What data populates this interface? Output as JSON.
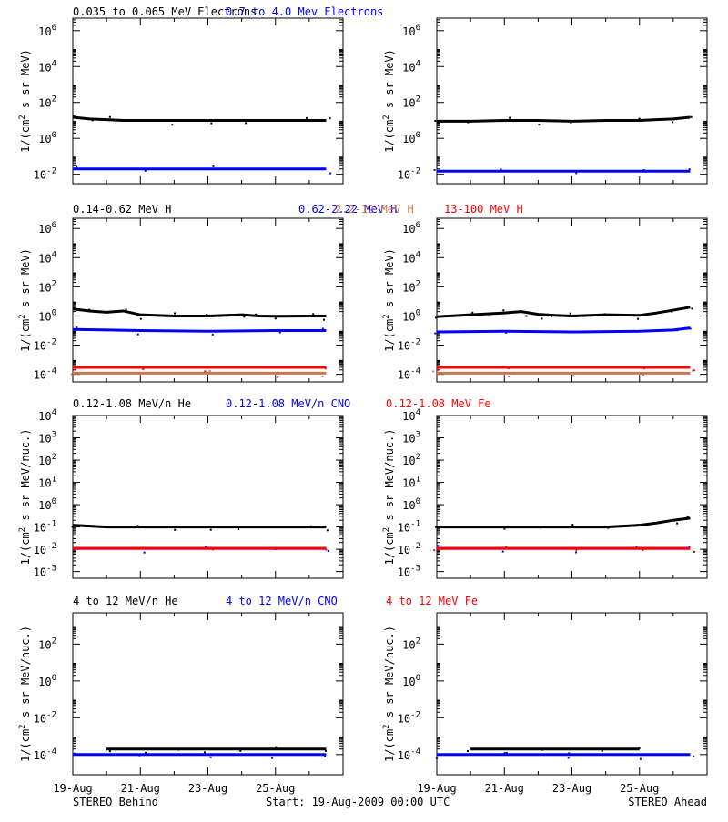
{
  "chart_data": [
    {
      "type": "scatter",
      "title_parts": [
        "0.035 to 0.065 MeV Electrons",
        "0.7 to 4.0 Mev Electrons"
      ],
      "title_colors": [
        "#000000",
        "#0000ff"
      ],
      "ylabel": "1/(cm2 s sr MeV)",
      "y_scale": "log",
      "ylim": [
        0.003,
        5000000
      ],
      "yticks": [
        0.01,
        1,
        100,
        10000,
        1000000
      ],
      "ytick_labels": [
        [
          "10",
          "-2"
        ],
        [
          "10",
          "0"
        ],
        [
          "10",
          "2"
        ],
        [
          "10",
          "4"
        ],
        [
          "10",
          "6"
        ]
      ],
      "xlim": [
        "19-Aug-2009",
        "27-Aug-2009"
      ],
      "xtick_labels": [
        "19-Aug",
        "21-Aug",
        "23-Aug",
        "25-Aug"
      ],
      "panels": [
        {
          "name": "STEREO Behind",
          "series": [
            {
              "name": "0.035 to 0.065 MeV Electrons",
              "color": "#000000",
              "x_days": [
                0,
                0.5,
                1,
                1.5,
                2,
                3,
                4,
                5,
                6,
                7,
                7.5
              ],
              "y": [
                15,
                12,
                11,
                10,
                10,
                10,
                10,
                10,
                10,
                10,
                10
              ]
            },
            {
              "name": "0.7 to 4.0 Mev Electrons",
              "color": "#0000ff",
              "x_days": [
                0,
                2,
                4,
                6,
                7.5
              ],
              "y": [
                0.02,
                0.02,
                0.02,
                0.02,
                0.02
              ]
            }
          ]
        },
        {
          "name": "STEREO Ahead",
          "series": [
            {
              "name": "0.035 to 0.065 MeV Electrons",
              "color": "#000000",
              "x_days": [
                0,
                1,
                2,
                3,
                4,
                5,
                6,
                6.5,
                7,
                7.5
              ],
              "y": [
                9,
                9,
                10,
                10,
                9,
                10,
                10,
                11,
                12,
                15
              ]
            },
            {
              "name": "0.7 to 4.0 Mev Electrons",
              "color": "#0000ff",
              "x_days": [
                0,
                2,
                4,
                6,
                7.5
              ],
              "y": [
                0.015,
                0.015,
                0.015,
                0.015,
                0.015
              ]
            }
          ]
        }
      ]
    },
    {
      "type": "scatter",
      "title_parts": [
        "0.14-0.62 MeV H",
        "0.62-2.22 MeV H",
        "2.2-12 MeV H",
        "13-100 MeV H"
      ],
      "title_colors": [
        "#000000",
        "#0000ff",
        "#c87850",
        "#ff0000"
      ],
      "ylabel": "1/(cm2 s sr MeV)",
      "y_scale": "log",
      "ylim": [
        3e-05,
        5000000
      ],
      "yticks": [
        0.0001,
        0.01,
        1,
        100,
        10000,
        1000000
      ],
      "ytick_labels": [
        [
          "10",
          "-4"
        ],
        [
          "10",
          "-2"
        ],
        [
          "10",
          "0"
        ],
        [
          "10",
          "2"
        ],
        [
          "10",
          "4"
        ],
        [
          "10",
          "6"
        ]
      ],
      "xlim": [
        "19-Aug-2009",
        "27-Aug-2009"
      ],
      "xtick_labels": [
        "19-Aug",
        "21-Aug",
        "23-Aug",
        "25-Aug"
      ],
      "panels": [
        {
          "name": "STEREO Behind",
          "series": [
            {
              "name": "0.14-0.62 MeV H",
              "color": "#000000",
              "x_days": [
                0,
                0.5,
                1,
                1.5,
                2,
                3,
                4,
                5,
                5.5,
                6,
                7,
                7.5
              ],
              "y": [
                3,
                2.2,
                1.8,
                2.2,
                1.2,
                1.0,
                1.0,
                1.2,
                1.0,
                0.95,
                1.0,
                1.0
              ]
            },
            {
              "name": "0.62-2.22 MeV H",
              "color": "#0000ff",
              "x_days": [
                0,
                2,
                4,
                6,
                7.5
              ],
              "y": [
                0.12,
                0.1,
                0.09,
                0.1,
                0.1
              ]
            },
            {
              "name": "2.2-12 MeV H",
              "color": "#c87850",
              "x_days": [
                0,
                2,
                4,
                6,
                7.5
              ],
              "y": [
                0.00012,
                0.00012,
                0.00012,
                0.00012,
                0.00012
              ]
            },
            {
              "name": "13-100 MeV H",
              "color": "#ff0000",
              "x_days": [
                0,
                2,
                4,
                6,
                7.5
              ],
              "y": [
                0.0003,
                0.0003,
                0.0003,
                0.0003,
                0.0003
              ]
            }
          ]
        },
        {
          "name": "STEREO Ahead",
          "series": [
            {
              "name": "0.14-0.62 MeV H",
              "color": "#000000",
              "x_days": [
                0,
                1,
                2,
                2.5,
                3,
                3.5,
                4,
                5,
                6,
                6.5,
                7,
                7.5
              ],
              "y": [
                0.9,
                1.2,
                1.6,
                2,
                1.3,
                1.1,
                1.0,
                1.2,
                1.1,
                1.6,
                2.5,
                4
              ]
            },
            {
              "name": "0.62-2.22 MeV H",
              "color": "#0000ff",
              "x_days": [
                0,
                2,
                4,
                6,
                7,
                7.5
              ],
              "y": [
                0.08,
                0.09,
                0.08,
                0.09,
                0.11,
                0.15
              ]
            },
            {
              "name": "2.2-12 MeV H",
              "color": "#c87850",
              "x_days": [
                0,
                2,
                4,
                6,
                7.5
              ],
              "y": [
                0.00012,
                0.00012,
                0.00012,
                0.00012,
                0.00012
              ]
            },
            {
              "name": "13-100 MeV H",
              "color": "#ff0000",
              "x_days": [
                0,
                2,
                4,
                6,
                7.5
              ],
              "y": [
                0.0003,
                0.0003,
                0.0003,
                0.0003,
                0.0003
              ]
            }
          ]
        }
      ]
    },
    {
      "type": "scatter",
      "title_parts": [
        "0.12-1.08 MeV/n He",
        "0.12-1.08 MeV/n CNO",
        "0.12-1.08 MeV Fe"
      ],
      "title_colors": [
        "#000000",
        "#0000ff",
        "#ff0000"
      ],
      "ylabel": "1/(cm2 s sr MeV/nuc.)",
      "y_scale": "log",
      "ylim": [
        0.0005,
        10000
      ],
      "yticks": [
        0.001,
        0.01,
        0.1,
        1,
        10,
        100,
        1000,
        10000
      ],
      "ytick_labels": [
        [
          "10",
          "-3"
        ],
        [
          "10",
          "-2"
        ],
        [
          "10",
          "-1"
        ],
        [
          "10",
          "0"
        ],
        [
          "10",
          "1"
        ],
        [
          "10",
          "2"
        ],
        [
          "10",
          "3"
        ],
        [
          "10",
          "4"
        ]
      ],
      "xlim": [
        "19-Aug-2009",
        "27-Aug-2009"
      ],
      "xtick_labels": [
        "19-Aug",
        "21-Aug",
        "23-Aug",
        "25-Aug"
      ],
      "panels": [
        {
          "name": "STEREO Behind",
          "series": [
            {
              "name": "0.12-1.08 MeV/n He",
              "color": "#000000",
              "x_days": [
                0,
                1,
                2,
                3,
                4,
                5,
                6,
                7,
                7.5
              ],
              "y": [
                0.12,
                0.1,
                0.1,
                0.1,
                0.1,
                0.1,
                0.1,
                0.1,
                0.1
              ]
            },
            {
              "name": "0.12-1.08 MeV/n CNO",
              "color": "#0000ff",
              "x_days": [
                0,
                2,
                4,
                6,
                7.5
              ],
              "y": [
                0.011,
                0.011,
                0.011,
                0.011,
                0.011
              ]
            },
            {
              "name": "0.12-1.08 MeV Fe",
              "color": "#ff0000",
              "x_days": [
                0,
                2,
                4,
                6,
                7.5
              ],
              "y": [
                0.011,
                0.011,
                0.011,
                0.011,
                0.011
              ]
            }
          ]
        },
        {
          "name": "STEREO Ahead",
          "series": [
            {
              "name": "0.12-1.08 MeV/n He",
              "color": "#000000",
              "x_days": [
                0,
                1,
                2,
                3,
                4,
                5,
                6,
                6.5,
                7,
                7.5
              ],
              "y": [
                0.1,
                0.1,
                0.1,
                0.1,
                0.1,
                0.1,
                0.12,
                0.15,
                0.2,
                0.25
              ]
            },
            {
              "name": "0.12-1.08 MeV/n CNO",
              "color": "#0000ff",
              "x_days": [
                0,
                2,
                4,
                6,
                7.5
              ],
              "y": [
                0.011,
                0.011,
                0.011,
                0.011,
                0.011
              ]
            },
            {
              "name": "0.12-1.08 MeV Fe",
              "color": "#ff0000",
              "x_days": [
                0,
                2,
                4,
                6,
                7.5
              ],
              "y": [
                0.011,
                0.011,
                0.011,
                0.011,
                0.011
              ]
            }
          ]
        }
      ]
    },
    {
      "type": "scatter",
      "title_parts": [
        "4 to 12 MeV/n He",
        "4 to 12 MeV/n CNO",
        "4 to 12 MeV Fe"
      ],
      "title_colors": [
        "#000000",
        "#0000ff",
        "#ff0000"
      ],
      "ylabel": "1/(cm2 s sr MeV/nuc.)",
      "y_scale": "log",
      "ylim": [
        8e-06,
        5000
      ],
      "yticks": [
        0.0001,
        0.01,
        1,
        100
      ],
      "ytick_labels": [
        [
          "10",
          "-4"
        ],
        [
          "10",
          "-2"
        ],
        [
          "10",
          "0"
        ],
        [
          "10",
          "2"
        ]
      ],
      "xlim": [
        "19-Aug-2009",
        "27-Aug-2009"
      ],
      "xtick_labels": [
        "19-Aug",
        "21-Aug",
        "23-Aug",
        "25-Aug"
      ],
      "panels": [
        {
          "name": "STEREO Behind",
          "series": [
            {
              "name": "4 to 12 MeV/n He",
              "color": "#000000",
              "x_days": [
                1,
                2,
                3,
                4,
                5,
                6,
                7.5
              ],
              "y": [
                0.0002,
                0.0002,
                0.0002,
                0.0002,
                0.0002,
                0.0002,
                0.0002
              ]
            },
            {
              "name": "4 to 12 MeV/n CNO",
              "color": "#0000ff",
              "x_days": [
                0,
                2,
                4,
                6,
                7.5
              ],
              "y": [
                0.0001,
                0.0001,
                0.0001,
                0.0001,
                0.0001
              ]
            }
          ]
        },
        {
          "name": "STEREO Ahead",
          "series": [
            {
              "name": "4 to 12 MeV/n He",
              "color": "#000000",
              "x_days": [
                1,
                2,
                3,
                4,
                5,
                6
              ],
              "y": [
                0.0002,
                0.0002,
                0.0002,
                0.0002,
                0.0002,
                0.0002
              ]
            },
            {
              "name": "4 to 12 MeV/n CNO",
              "color": "#0000ff",
              "x_days": [
                0,
                2,
                4,
                6,
                7.5
              ],
              "y": [
                0.0001,
                0.0001,
                0.0001,
                0.0001,
                0.0001
              ]
            }
          ]
        }
      ]
    }
  ],
  "footer": {
    "left_label": "STEREO Behind",
    "center_label": "Start: 19-Aug-2009 00:00 UTC",
    "right_label": "STEREO Ahead"
  }
}
